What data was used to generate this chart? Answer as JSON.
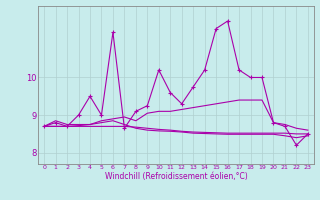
{
  "xlabel": "Windchill (Refroidissement éolien,°C)",
  "background_color": "#c8ecec",
  "grid_color": "#b0d0d0",
  "line_color": "#aa00aa",
  "x": [
    0,
    1,
    2,
    3,
    4,
    5,
    6,
    7,
    8,
    9,
    10,
    11,
    12,
    13,
    14,
    15,
    16,
    17,
    18,
    19,
    20,
    21,
    22,
    23
  ],
  "line1": [
    8.7,
    8.85,
    8.75,
    8.75,
    8.75,
    8.85,
    8.9,
    8.95,
    8.85,
    9.05,
    9.1,
    9.1,
    9.15,
    9.2,
    9.25,
    9.3,
    9.35,
    9.4,
    9.4,
    9.4,
    8.8,
    8.75,
    8.65,
    8.6
  ],
  "line2": [
    8.7,
    8.7,
    8.7,
    8.7,
    8.7,
    8.7,
    8.7,
    8.7,
    8.68,
    8.65,
    8.62,
    8.6,
    8.57,
    8.55,
    8.54,
    8.53,
    8.52,
    8.52,
    8.52,
    8.52,
    8.52,
    8.52,
    8.5,
    8.5
  ],
  "line3": [
    8.7,
    8.8,
    8.7,
    9.0,
    9.5,
    9.0,
    11.2,
    8.65,
    9.1,
    9.25,
    10.2,
    9.6,
    9.3,
    9.75,
    10.2,
    11.3,
    11.5,
    10.2,
    10.0,
    10.0,
    8.8,
    8.7,
    8.2,
    8.5
  ],
  "line4": [
    8.7,
    8.7,
    8.7,
    8.72,
    8.75,
    8.8,
    8.85,
    8.75,
    8.65,
    8.6,
    8.58,
    8.57,
    8.55,
    8.52,
    8.51,
    8.5,
    8.49,
    8.49,
    8.49,
    8.49,
    8.49,
    8.45,
    8.4,
    8.45
  ],
  "ylim": [
    7.7,
    11.9
  ],
  "yticks": [
    8,
    9,
    10
  ],
  "xticks": [
    0,
    1,
    2,
    3,
    4,
    5,
    6,
    7,
    8,
    9,
    10,
    11,
    12,
    13,
    14,
    15,
    16,
    17,
    18,
    19,
    20,
    21,
    22,
    23
  ]
}
